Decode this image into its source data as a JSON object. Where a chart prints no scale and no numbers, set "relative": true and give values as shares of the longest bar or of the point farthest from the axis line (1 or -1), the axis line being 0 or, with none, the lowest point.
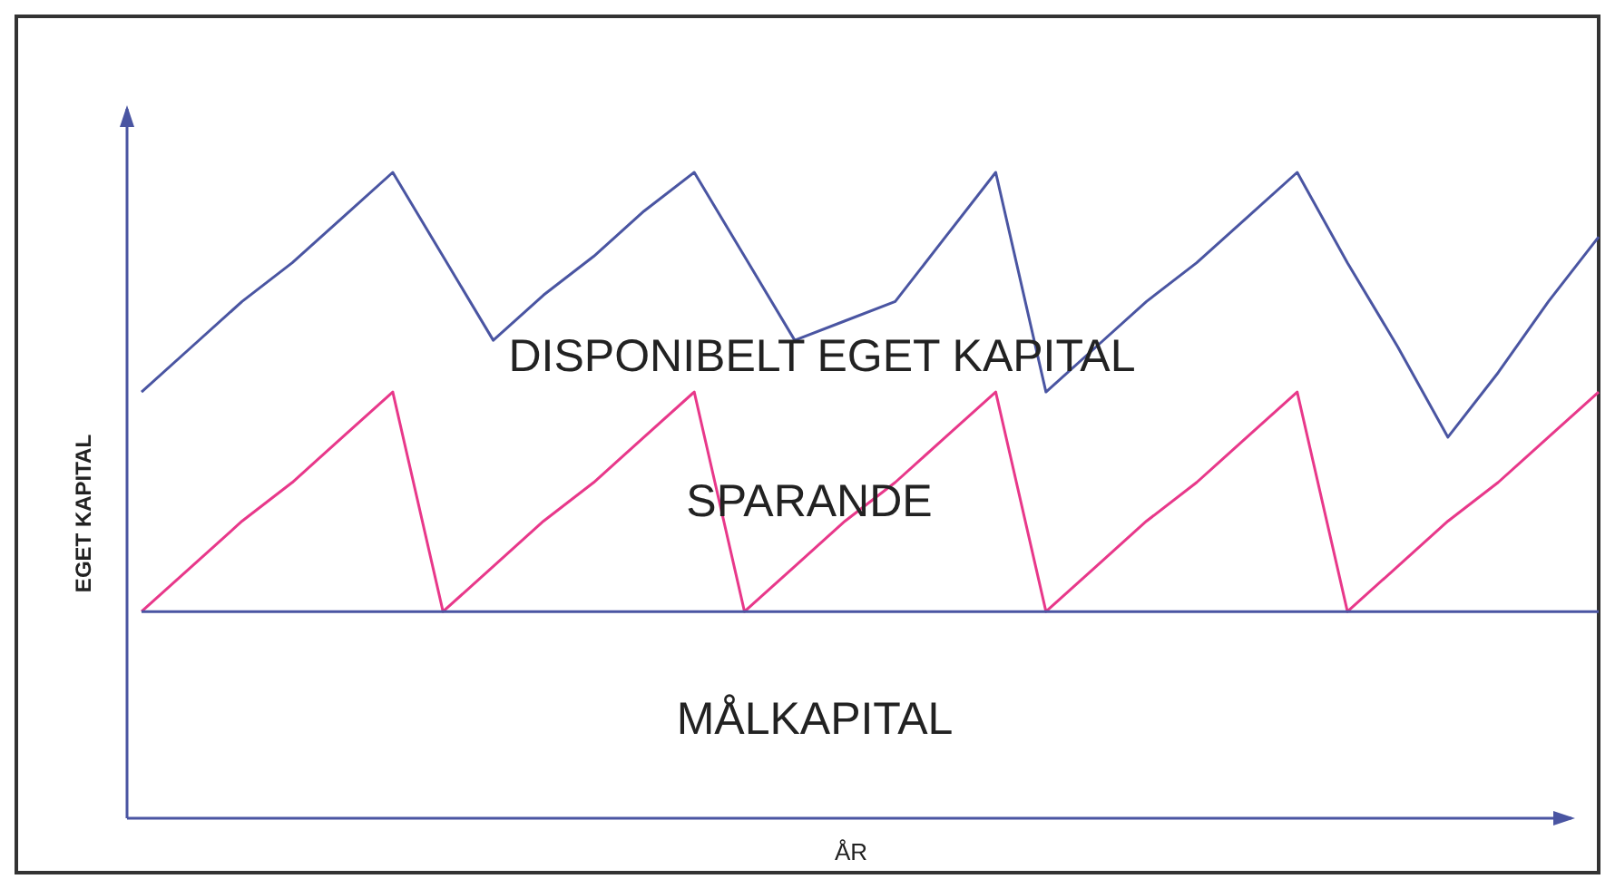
{
  "chart_data": {
    "type": "line",
    "relative": true,
    "xlabel": "ÅR",
    "ylabel": "EGET KAPITAL",
    "marker": "none",
    "line_style": "solid",
    "categories": [
      null,
      null,
      null,
      null,
      null,
      null,
      null,
      null,
      null,
      null,
      null,
      null,
      null,
      null,
      null,
      null,
      null,
      null,
      null,
      null,
      null,
      null,
      null,
      null,
      null,
      null,
      null,
      null,
      null,
      null
    ],
    "series": [
      {
        "color": "#4a55a2",
        "values": [
          0.66,
          0.73,
          0.8,
          0.86,
          0.93,
          1,
          0.87,
          0.74,
          0.81,
          0.87,
          0.94,
          1,
          0.87,
          0.74,
          0.77,
          0.8,
          0.9,
          1,
          0.66,
          0.73,
          0.8,
          0.86,
          0.93,
          1,
          0.86,
          0.73,
          0.59,
          0.69,
          0.8,
          0.9
        ]
      },
      {
        "color": "#e8388a",
        "values": [
          0.32,
          0.39,
          0.46,
          0.52,
          0.59,
          0.66,
          0.32,
          0.39,
          0.46,
          0.52,
          0.59,
          0.66,
          0.32,
          0.39,
          0.46,
          0.52,
          0.59,
          0.66,
          0.32,
          0.39,
          0.46,
          0.52,
          0.59,
          0.66,
          0.32,
          0.39,
          0.46,
          0.52,
          0.59,
          0.66
        ]
      },
      {
        "color": "#4a55a2",
        "values": [
          0.32,
          0.32,
          0.32,
          0.32,
          0.32,
          0.32,
          0.32,
          0.32,
          0.32,
          0.32,
          0.32,
          0.32,
          0.32,
          0.32,
          0.32,
          0.32,
          0.32,
          0.32,
          0.32,
          0.32,
          0.32,
          0.32,
          0.32,
          0.32,
          0.32,
          0.32,
          0.32,
          0.32,
          0.32,
          0.32
        ]
      }
    ],
    "annotations": [
      "DISPONIBELT EGET KAPITAL",
      "SPARANDE",
      "MÅLKAPITAL"
    ]
  }
}
